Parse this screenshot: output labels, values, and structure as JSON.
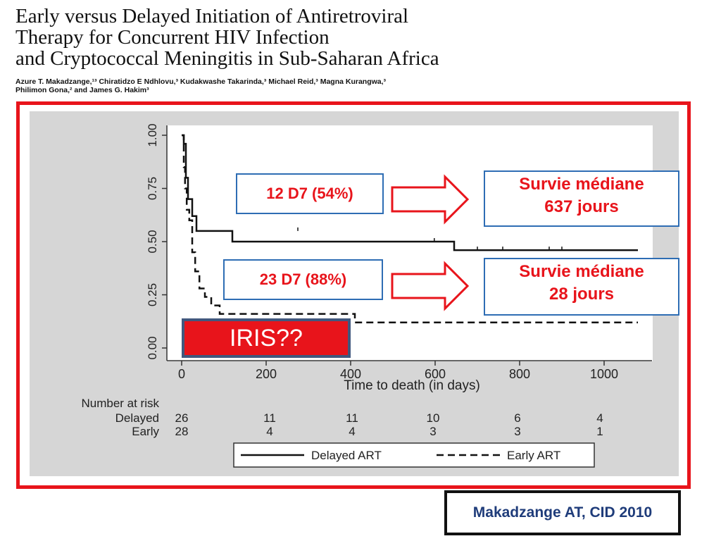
{
  "header": {
    "title_lines": [
      "Early versus Delayed Initiation of Antiretroviral",
      "Therapy for Concurrent HIV Infection",
      "and Cryptococcal Meningitis in Sub-Saharan Africa"
    ],
    "authors_lines": [
      "Azure T. Makadzange,¹³ Chiratidzo E Ndhlovu,³ Kudakwashe Takarinda,³ Michael Reid,³ Magna Kurangwa,³",
      "Philimon Gona,² and James G. Hakim³"
    ]
  },
  "chart_data": {
    "type": "line",
    "xlabel": "Time to death (in days)",
    "ylabel": "",
    "xlim": [
      0,
      1100
    ],
    "ylim": [
      0,
      1
    ],
    "x_ticks": [
      "0",
      "200",
      "400",
      "600",
      "800",
      "1000"
    ],
    "y_ticks": [
      "0.00",
      "0.25",
      "0.50",
      "0.75",
      "1.00"
    ],
    "grid": false,
    "series": [
      {
        "name": "Delayed ART",
        "style": "solid",
        "points": [
          [
            0,
            1.0
          ],
          [
            5,
            0.96
          ],
          [
            10,
            0.8
          ],
          [
            15,
            0.7
          ],
          [
            25,
            0.62
          ],
          [
            35,
            0.55
          ],
          [
            120,
            0.5
          ],
          [
            640,
            0.5
          ],
          [
            645,
            0.46
          ],
          [
            1080,
            0.46
          ]
        ]
      },
      {
        "name": "Early ART",
        "style": "dashed",
        "points": [
          [
            0,
            1.0
          ],
          [
            5,
            0.85
          ],
          [
            8,
            0.75
          ],
          [
            12,
            0.65
          ],
          [
            18,
            0.6
          ],
          [
            25,
            0.45
          ],
          [
            32,
            0.36
          ],
          [
            42,
            0.28
          ],
          [
            55,
            0.24
          ],
          [
            70,
            0.2
          ],
          [
            90,
            0.16
          ],
          [
            400,
            0.16
          ],
          [
            410,
            0.12
          ],
          [
            1080,
            0.12
          ]
        ]
      }
    ],
    "risk_table": {
      "header": "Number at risk",
      "rows": [
        {
          "label": "Delayed",
          "values": [
            "26",
            "11",
            "11",
            "10",
            "6",
            "4"
          ]
        },
        {
          "label": "Early",
          "values": [
            "28",
            "4",
            "4",
            "3",
            "3",
            "1"
          ]
        }
      ]
    },
    "legend": {
      "placement": "bottom",
      "entries": [
        "Delayed ART",
        "Early ART"
      ]
    }
  },
  "annotations": {
    "delayed_count": "12 D7 (54%)",
    "delayed_survival_lines": [
      "Survie médiane",
      "637 jours"
    ],
    "early_count": "23 D7 (88%)",
    "early_survival_lines": [
      "Survie médiane",
      "28  jours"
    ],
    "iris_label": "IRIS??"
  },
  "citation": "Makadzange AT, CID 2010",
  "colors": {
    "frame_red": "#e8141b",
    "callout_border": "#2e6db4",
    "plot_background": "#d6d6d6",
    "citation_text": "#1f3c7a",
    "iris_border": "#41587e"
  }
}
